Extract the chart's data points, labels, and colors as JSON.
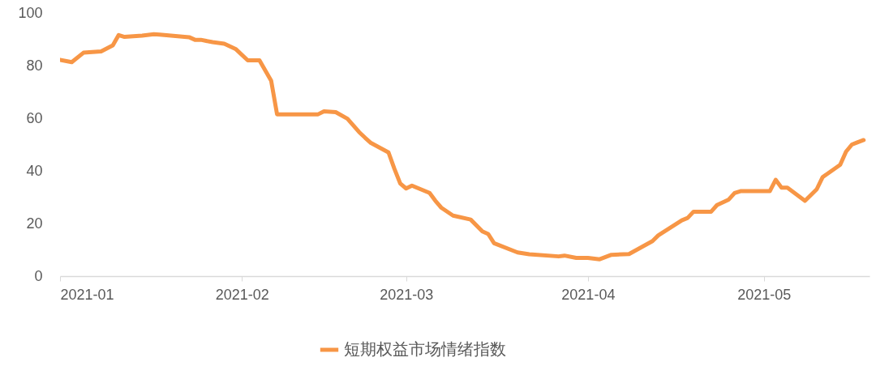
{
  "chart_data": {
    "type": "line",
    "legend": "bottom",
    "x": [
      "2021-01-01",
      "2021-01-03",
      "2021-01-05",
      "2021-01-08",
      "2021-01-10",
      "2021-01-11",
      "2021-01-12",
      "2021-01-15",
      "2021-01-17",
      "2021-01-18",
      "2021-01-23",
      "2021-01-24",
      "2021-01-25",
      "2021-01-27",
      "2021-01-29",
      "2021-01-31",
      "2021-02-02",
      "2021-02-04",
      "2021-02-06",
      "2021-02-07",
      "2021-02-14",
      "2021-02-15",
      "2021-02-17",
      "2021-02-19",
      "2021-02-21",
      "2021-02-22",
      "2021-02-23",
      "2021-02-26",
      "2021-02-27",
      "2021-02-28",
      "2021-03-01",
      "2021-03-02",
      "2021-03-05",
      "2021-03-06",
      "2021-03-07",
      "2021-03-09",
      "2021-03-12",
      "2021-03-14",
      "2021-03-15",
      "2021-03-16",
      "2021-03-20",
      "2021-03-22",
      "2021-03-27",
      "2021-03-28",
      "2021-03-30",
      "2021-04-01",
      "2021-04-03",
      "2021-04-05",
      "2021-04-08",
      "2021-04-12",
      "2021-04-13",
      "2021-04-17",
      "2021-04-18",
      "2021-04-19",
      "2021-04-22",
      "2021-04-23",
      "2021-04-25",
      "2021-04-26",
      "2021-04-27",
      "2021-05-02",
      "2021-05-03",
      "2021-05-04",
      "2021-05-05",
      "2021-05-08",
      "2021-05-10",
      "2021-05-11",
      "2021-05-14",
      "2021-05-15",
      "2021-05-16",
      "2021-05-17",
      "2021-05-18"
    ],
    "series": [
      {
        "name": "短期权益市场情绪指数",
        "color": "#f79646",
        "values": [
          82.2,
          81.3,
          84.9,
          85.4,
          87.7,
          91.6,
          90.9,
          91.4,
          91.9,
          91.8,
          90.8,
          89.8,
          89.8,
          88.9,
          88.3,
          86.2,
          82.0,
          82.0,
          74.2,
          61.5,
          61.5,
          62.6,
          62.3,
          59.8,
          54.7,
          52.6,
          50.6,
          47.0,
          40.8,
          35.2,
          33.3,
          34.4,
          31.6,
          28.6,
          26.0,
          23.0,
          21.5,
          17.0,
          16.0,
          12.5,
          9.0,
          8.3,
          7.5,
          7.8,
          6.9,
          6.9,
          6.4,
          8.1,
          8.4,
          13.3,
          15.5,
          21.2,
          22.1,
          24.5,
          24.5,
          27.0,
          29.1,
          31.6,
          32.3,
          32.3,
          36.6,
          33.6,
          33.6,
          28.6,
          33.0,
          37.6,
          42.3,
          47.3,
          50.0,
          50.9,
          51.7
        ]
      }
    ],
    "xlim": [
      "2021-01-01",
      "2021-05-19"
    ],
    "xticks": [
      "2021-01",
      "2021-02",
      "2021-03",
      "2021-04",
      "2021-05"
    ],
    "ylim": [
      0,
      100
    ],
    "yticks": [
      0,
      20,
      40,
      60,
      80,
      100
    ]
  }
}
